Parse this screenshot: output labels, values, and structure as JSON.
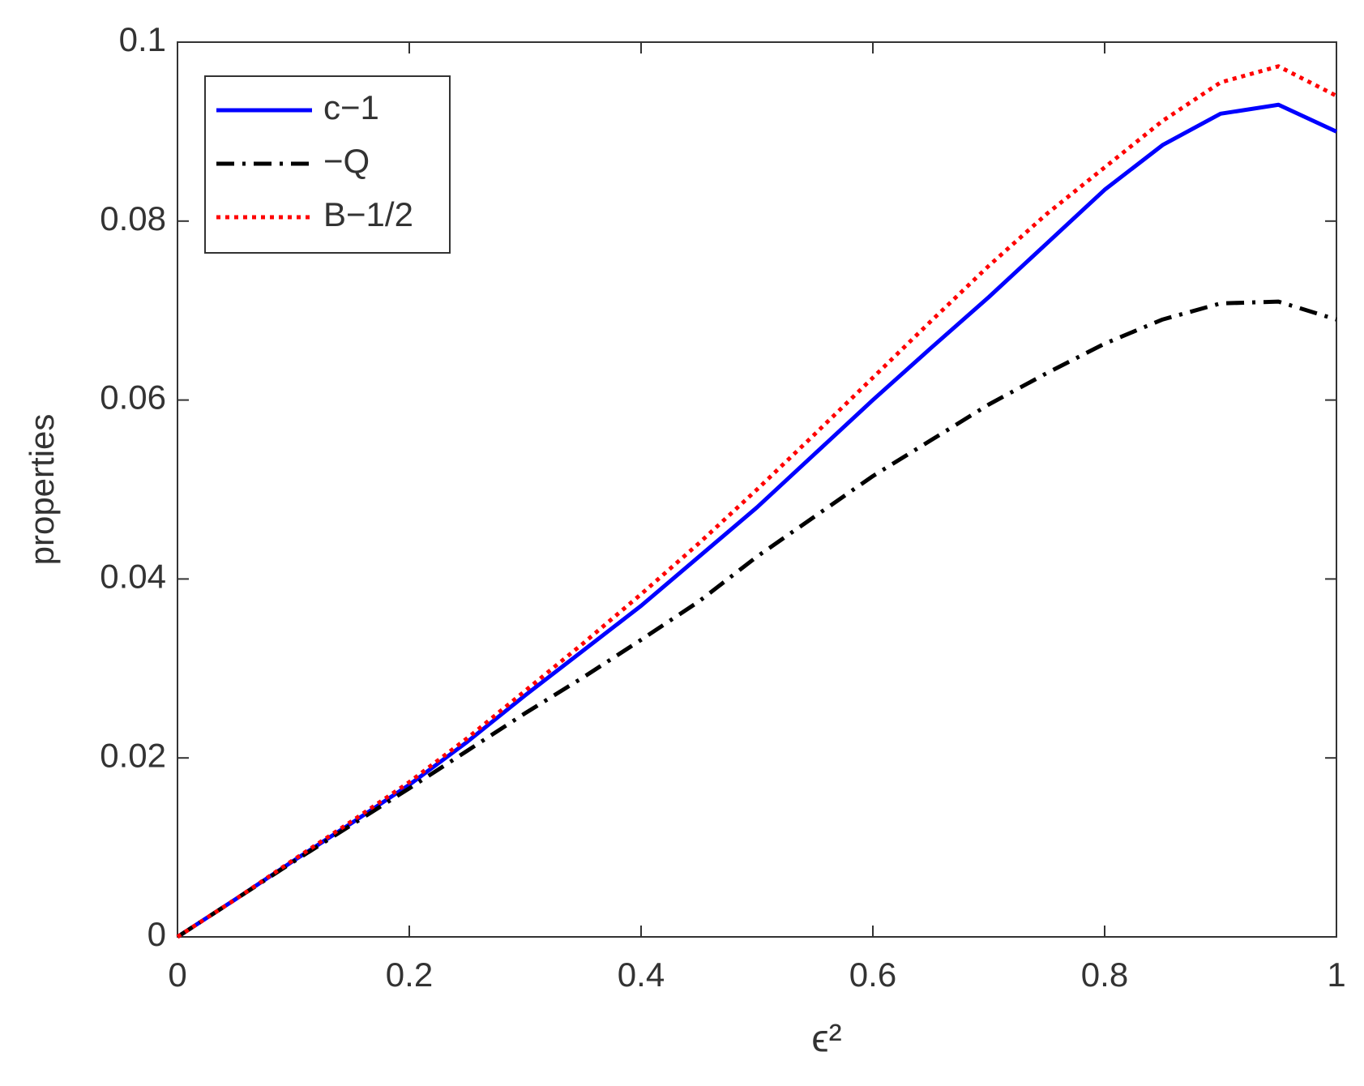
{
  "chart_data": {
    "type": "line",
    "x_label": "ϵ²",
    "y_label": "properties",
    "x": [
      0,
      0.05,
      0.1,
      0.15,
      0.2,
      0.25,
      0.3,
      0.35,
      0.4,
      0.45,
      0.5,
      0.55,
      0.6,
      0.65,
      0.7,
      0.75,
      0.8,
      0.85,
      0.9,
      0.95,
      1
    ],
    "series": [
      {
        "name": "c−1",
        "color": "#0000ff",
        "dash": "solid",
        "values": [
          0,
          0.0042,
          0.0085,
          0.0127,
          0.017,
          0.0218,
          0.027,
          0.032,
          0.037,
          0.0425,
          0.048,
          0.054,
          0.06,
          0.0658,
          0.0715,
          0.0775,
          0.0835,
          0.0885,
          0.092,
          0.093,
          0.09
        ]
      },
      {
        "name": "−Q",
        "color": "#000000",
        "dash": "dashdot",
        "values": [
          0,
          0.0042,
          0.0084,
          0.0125,
          0.0166,
          0.0208,
          0.025,
          0.029,
          0.0332,
          0.0375,
          0.0425,
          0.047,
          0.0515,
          0.0555,
          0.0595,
          0.063,
          0.0663,
          0.069,
          0.0708,
          0.071,
          0.069
        ]
      },
      {
        "name": "B−1/2",
        "color": "#ff0000",
        "dash": "dotted",
        "values": [
          0,
          0.0042,
          0.0086,
          0.0129,
          0.0173,
          0.0222,
          0.0275,
          0.0328,
          0.0383,
          0.044,
          0.05,
          0.0562,
          0.0625,
          0.0688,
          0.075,
          0.0808,
          0.086,
          0.0912,
          0.0955,
          0.0973,
          0.094
        ]
      }
    ],
    "xlim": [
      0,
      1
    ],
    "xticks": [
      0,
      0.2,
      0.4,
      0.6,
      0.8,
      1
    ],
    "ylim": [
      0,
      0.1
    ],
    "yticks": [
      0,
      0.02,
      0.04,
      0.06,
      0.08,
      0.1
    ],
    "grid": false,
    "legend": "top-left"
  }
}
